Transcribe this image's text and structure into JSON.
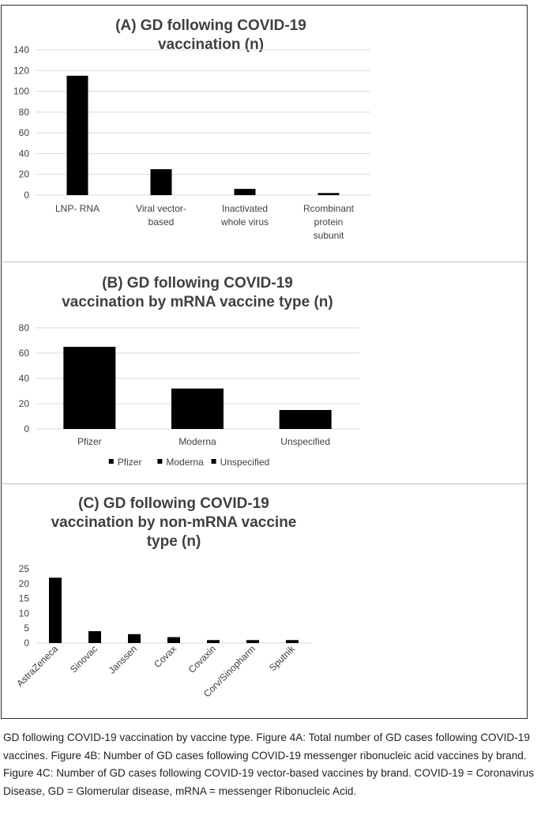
{
  "chart_data": [
    {
      "type": "bar",
      "title_lines": [
        "(A) GD following COVID-19",
        "vaccination (n)"
      ],
      "categories": [
        [
          "LNP- RNA"
        ],
        [
          "Viral vector-",
          "based"
        ],
        [
          "Inactivated",
          "whole virus"
        ],
        [
          "Rcombinant",
          "protein",
          "subunit"
        ]
      ],
      "values": [
        115,
        25,
        6,
        2
      ],
      "ylim": [
        0,
        140
      ],
      "yticks": [
        0,
        20,
        40,
        60,
        80,
        100,
        120,
        140
      ],
      "grid": true,
      "bar_color": "#000000"
    },
    {
      "type": "bar",
      "title_lines": [
        "(B) GD following COVID-19",
        "vaccination by mRNA vaccine type (n)"
      ],
      "categories": [
        "Pfizer",
        "Moderna",
        "Unspecified"
      ],
      "values": [
        65,
        32,
        15
      ],
      "ylim": [
        0,
        80
      ],
      "yticks": [
        0,
        20,
        40,
        60,
        80
      ],
      "grid": true,
      "legend": [
        "Pfizer",
        "Moderna",
        "Unspecified"
      ],
      "legend_position": "bottom",
      "bar_color": "#000000"
    },
    {
      "type": "bar",
      "title_lines": [
        "(C) GD following COVID-19",
        "vaccination by non-mRNA vaccine",
        "type (n)"
      ],
      "categories": [
        "AstraZeneca",
        "Sinovac",
        "Janssen",
        "Covax",
        "Covaxin",
        "Corv/Sinopharm",
        "Sputnik"
      ],
      "values": [
        22,
        4,
        3,
        2,
        1,
        1,
        1
      ],
      "ylim": [
        0,
        25
      ],
      "yticks": [
        0,
        5,
        10,
        15,
        20,
        25
      ],
      "grid": false,
      "tick_label_rotation": "rotated",
      "bar_color": "#000000"
    }
  ],
  "caption": "GD following COVID-19 vaccination by vaccine type. Figure 4A: Total number of GD cases following COVID-19 vaccines. Figure 4B: Number of GD cases following COVID-19 messenger ribonucleic acid vaccines by brand. Figure 4C: Number of GD cases following COVID-19 vector-based vaccines by brand. COVID-19 = Coronavirus Disease, GD = Glomerular disease, mRNA = messenger Ribonucleic Acid."
}
